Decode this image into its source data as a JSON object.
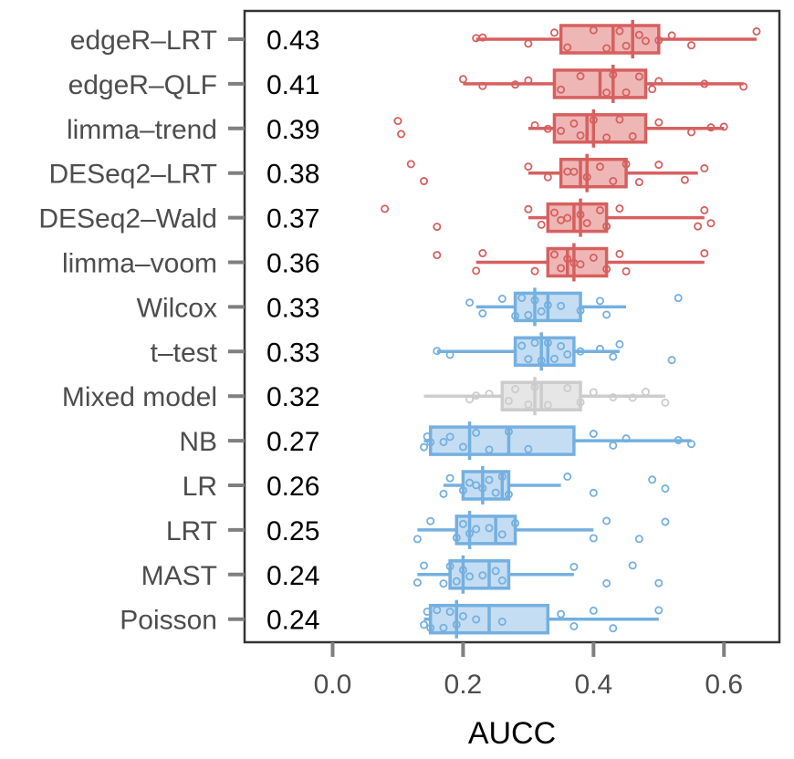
{
  "chart_data": {
    "type": "box",
    "xlabel": "AUCC",
    "xlim": [
      -0.135,
      0.685
    ],
    "xticks": [
      0.0,
      0.2,
      0.4,
      0.6
    ],
    "xtick_labels": [
      "0.0",
      "0.2",
      "0.4",
      "0.6"
    ],
    "colors": {
      "red": "#d6605f",
      "blue": "#74b0e0",
      "grey": "#cccccc"
    },
    "categories": [
      {
        "name": "edgeR–LRT",
        "label": "0.43",
        "color": "red",
        "whisker_low": 0.22,
        "q1": 0.35,
        "median": 0.43,
        "mean": 0.46,
        "q3": 0.5,
        "whisker_high": 0.65,
        "points": [
          0.22,
          0.23,
          0.3,
          0.34,
          0.36,
          0.4,
          0.42,
          0.44,
          0.45,
          0.47,
          0.48,
          0.5,
          0.52,
          0.55,
          0.65
        ]
      },
      {
        "name": "edgeR–QLF",
        "label": "0.41",
        "color": "red",
        "whisker_low": 0.2,
        "q1": 0.34,
        "median": 0.41,
        "mean": 0.43,
        "q3": 0.48,
        "whisker_high": 0.63,
        "points": [
          0.2,
          0.23,
          0.28,
          0.3,
          0.35,
          0.38,
          0.42,
          0.43,
          0.45,
          0.47,
          0.49,
          0.5,
          0.57,
          0.63
        ]
      },
      {
        "name": "limma–trend",
        "label": "0.39",
        "color": "red",
        "whisker_low": 0.3,
        "q1": 0.34,
        "median": 0.39,
        "mean": 0.4,
        "q3": 0.48,
        "whisker_high": 0.6,
        "points": [
          0.1,
          0.105,
          0.31,
          0.33,
          0.35,
          0.37,
          0.38,
          0.4,
          0.42,
          0.44,
          0.46,
          0.5,
          0.55,
          0.58,
          0.6
        ]
      },
      {
        "name": "DESeq2–LRT",
        "label": "0.38",
        "color": "red",
        "whisker_low": 0.3,
        "q1": 0.35,
        "median": 0.38,
        "mean": 0.39,
        "q3": 0.45,
        "whisker_high": 0.56,
        "points": [
          0.12,
          0.14,
          0.3,
          0.33,
          0.36,
          0.37,
          0.39,
          0.41,
          0.43,
          0.45,
          0.47,
          0.5,
          0.54,
          0.57
        ]
      },
      {
        "name": "DESeq2–Wald",
        "label": "0.37",
        "color": "red",
        "whisker_low": 0.3,
        "q1": 0.33,
        "median": 0.37,
        "mean": 0.38,
        "q3": 0.42,
        "whisker_high": 0.57,
        "points": [
          0.08,
          0.16,
          0.3,
          0.32,
          0.34,
          0.35,
          0.36,
          0.38,
          0.39,
          0.41,
          0.42,
          0.44,
          0.56,
          0.57,
          0.58
        ]
      },
      {
        "name": "limma–voom",
        "label": "0.36",
        "color": "red",
        "whisker_low": 0.22,
        "q1": 0.33,
        "median": 0.36,
        "mean": 0.37,
        "q3": 0.42,
        "whisker_high": 0.57,
        "points": [
          0.16,
          0.22,
          0.23,
          0.31,
          0.34,
          0.35,
          0.36,
          0.37,
          0.38,
          0.4,
          0.42,
          0.44,
          0.45,
          0.57
        ]
      },
      {
        "name": "Wilcox",
        "label": "0.33",
        "color": "blue",
        "whisker_low": 0.22,
        "q1": 0.28,
        "median": 0.33,
        "mean": 0.31,
        "q3": 0.38,
        "whisker_high": 0.45,
        "points": [
          0.21,
          0.23,
          0.26,
          0.28,
          0.29,
          0.3,
          0.31,
          0.32,
          0.33,
          0.35,
          0.38,
          0.41,
          0.42,
          0.53
        ]
      },
      {
        "name": "t–test",
        "label": "0.33",
        "color": "blue",
        "whisker_low": 0.16,
        "q1": 0.28,
        "median": 0.33,
        "mean": 0.32,
        "q3": 0.37,
        "whisker_high": 0.44,
        "points": [
          0.16,
          0.18,
          0.29,
          0.3,
          0.31,
          0.32,
          0.33,
          0.34,
          0.35,
          0.36,
          0.38,
          0.41,
          0.43,
          0.44,
          0.52
        ]
      },
      {
        "name": "Mixed model",
        "label": "0.32",
        "color": "grey",
        "whisker_low": 0.14,
        "q1": 0.26,
        "median": 0.32,
        "mean": 0.31,
        "q3": 0.38,
        "whisker_high": 0.51,
        "points": [
          0.21,
          0.22,
          0.24,
          0.27,
          0.28,
          0.3,
          0.31,
          0.33,
          0.36,
          0.38,
          0.4,
          0.43,
          0.46,
          0.48,
          0.51
        ]
      },
      {
        "name": "NB",
        "label": "0.27",
        "color": "blue",
        "whisker_low": 0.14,
        "q1": 0.15,
        "median": 0.27,
        "mean": 0.21,
        "q3": 0.37,
        "whisker_high": 0.55,
        "points": [
          0.14,
          0.145,
          0.15,
          0.17,
          0.18,
          0.2,
          0.22,
          0.24,
          0.27,
          0.3,
          0.4,
          0.43,
          0.45,
          0.53,
          0.55
        ]
      },
      {
        "name": "LR",
        "label": "0.26",
        "color": "blue",
        "whisker_low": 0.17,
        "q1": 0.2,
        "median": 0.26,
        "mean": 0.23,
        "q3": 0.27,
        "whisker_high": 0.35,
        "points": [
          0.17,
          0.18,
          0.2,
          0.21,
          0.22,
          0.23,
          0.24,
          0.25,
          0.26,
          0.27,
          0.36,
          0.4,
          0.49,
          0.51
        ]
      },
      {
        "name": "LRT",
        "label": "0.25",
        "color": "blue",
        "whisker_low": 0.13,
        "q1": 0.19,
        "median": 0.25,
        "mean": 0.21,
        "q3": 0.28,
        "whisker_high": 0.4,
        "points": [
          0.13,
          0.15,
          0.19,
          0.2,
          0.21,
          0.22,
          0.24,
          0.26,
          0.28,
          0.4,
          0.42,
          0.47,
          0.51
        ]
      },
      {
        "name": "MAST",
        "label": "0.24",
        "color": "blue",
        "whisker_low": 0.13,
        "q1": 0.18,
        "median": 0.24,
        "mean": 0.2,
        "q3": 0.27,
        "whisker_high": 0.37,
        "points": [
          0.13,
          0.14,
          0.17,
          0.18,
          0.19,
          0.2,
          0.21,
          0.23,
          0.25,
          0.26,
          0.37,
          0.42,
          0.46,
          0.5
        ]
      },
      {
        "name": "Poisson",
        "label": "0.24",
        "color": "blue",
        "whisker_low": 0.14,
        "q1": 0.15,
        "median": 0.24,
        "mean": 0.19,
        "q3": 0.33,
        "whisker_high": 0.5,
        "points": [
          0.14,
          0.145,
          0.15,
          0.16,
          0.17,
          0.18,
          0.19,
          0.2,
          0.22,
          0.26,
          0.35,
          0.37,
          0.4,
          0.43,
          0.5
        ]
      }
    ]
  }
}
